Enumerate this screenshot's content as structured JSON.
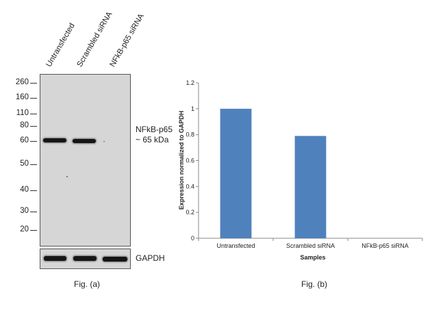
{
  "western_blot": {
    "lanes": [
      "Untransfected",
      "Scrambled siRNA",
      "NFkB-p65 siRNA"
    ],
    "mw_markers": [
      "260",
      "160",
      "110",
      "80",
      "60",
      "50",
      "40",
      "30",
      "20"
    ],
    "target_label_line1": "NFkB-p65",
    "target_label_line2": "~ 65 kDa",
    "loading_control_label": "GAPDH",
    "caption": "Fig. (a)"
  },
  "bar_panel": {
    "caption": "Fig. (b)"
  },
  "chart_data": {
    "type": "bar",
    "categories": [
      "Untransfected",
      "Scrambled siRNA",
      "NFkB-p65 siRNA"
    ],
    "values": [
      1.0,
      0.79,
      0.0
    ],
    "xlabel": "Samples",
    "ylabel": "Expression  normalized to GAPDH",
    "ylim": [
      0,
      1.2
    ],
    "yticks": [
      "0",
      "0.2",
      "0.4",
      "0.6",
      "0.8",
      "1",
      "1.2"
    ],
    "grid": false,
    "bar_color": "#4F81BD"
  }
}
